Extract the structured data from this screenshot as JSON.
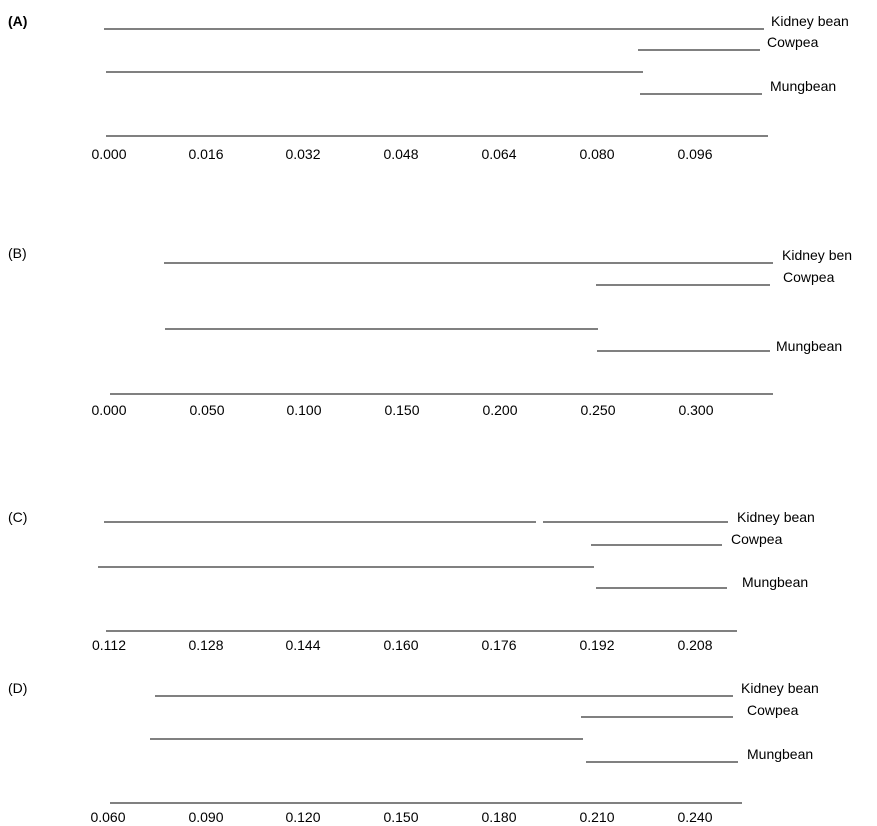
{
  "panels": [
    {
      "label": "(A)",
      "label_bold": true,
      "taxa": [
        "Kidney bean",
        "Cowpea",
        "Mungbean"
      ],
      "scale_ticks": [
        "0.000",
        "0.016",
        "0.032",
        "0.048",
        "0.064",
        "0.080",
        "0.096"
      ]
    },
    {
      "label": "(B)",
      "label_bold": false,
      "taxa": [
        "Kidney ben",
        "Cowpea",
        "Mungbean"
      ],
      "scale_ticks": [
        "0.000",
        "0.050",
        "0.100",
        "0.150",
        "0.200",
        "0.250",
        "0.300"
      ]
    },
    {
      "label": "(C)",
      "label_bold": false,
      "taxa": [
        "Kidney bean",
        "Cowpea",
        "Mungbean"
      ],
      "scale_ticks": [
        "0.112",
        "0.128",
        "0.144",
        "0.160",
        "0.176",
        "0.192",
        "0.208"
      ]
    },
    {
      "label": "(D)",
      "label_bold": false,
      "taxa": [
        "Kidney bean",
        "Cowpea",
        "Mungbean"
      ],
      "scale_ticks": [
        "0.060",
        "0.090",
        "0.120",
        "0.150",
        "0.180",
        "0.210",
        "0.240"
      ]
    }
  ]
}
